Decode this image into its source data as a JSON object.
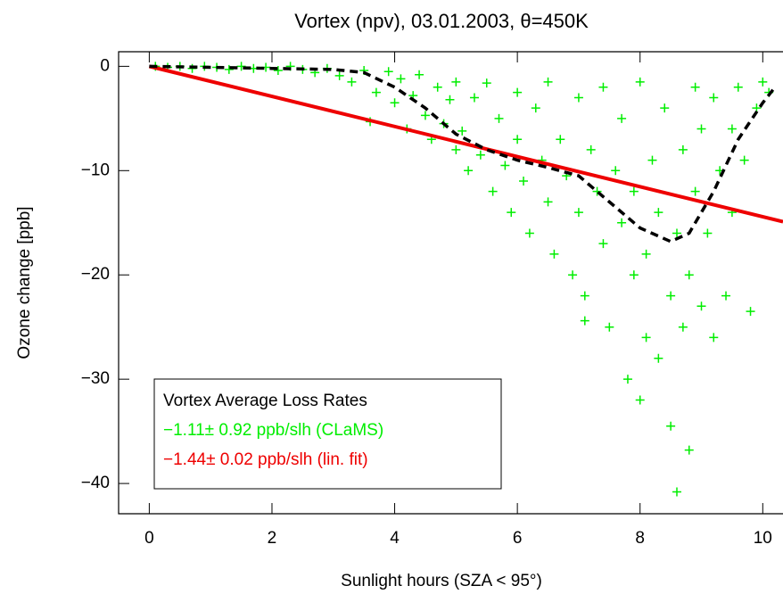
{
  "chart_data": {
    "type": "scatter",
    "title": "Vortex (npv), 03.01.2003, θ=450K",
    "xlabel": "Sunlight hours (SZA < 95°)",
    "ylabel": "Ozone change [ppb]",
    "legend_title": "Vortex Average Loss Rates",
    "legend": "lower left",
    "xlim": [
      -0.5,
      10.33
    ],
    "ylim": [
      -42.9,
      1.4
    ],
    "xticks": [
      0,
      2,
      4,
      6,
      8,
      10
    ],
    "yticks": [
      0,
      {
        "value": -10,
        "label": "−10"
      },
      {
        "value": -20,
        "label": "−20"
      },
      {
        "value": -30,
        "label": "−30"
      },
      {
        "value": -40,
        "label": "−40"
      }
    ],
    "series": [
      {
        "name": "−1.11± 0.92 ppb/slh (CLaMS)",
        "type": "scatter",
        "color": "#00ee00",
        "x": [
          0.1,
          0.3,
          0.5,
          0.7,
          0.9,
          1.1,
          1.3,
          1.5,
          1.7,
          1.9,
          2.1,
          2.3,
          2.5,
          2.7,
          2.9,
          3.1,
          3.3,
          3.5,
          3.6,
          3.7,
          3.9,
          4.0,
          4.1,
          4.2,
          4.3,
          4.4,
          4.5,
          4.6,
          4.7,
          4.8,
          4.9,
          5.0,
          5.0,
          5.1,
          5.2,
          5.3,
          5.4,
          5.5,
          5.6,
          5.7,
          5.8,
          5.9,
          6.0,
          6.0,
          6.1,
          6.2,
          6.3,
          6.4,
          6.5,
          6.5,
          6.6,
          6.7,
          6.8,
          6.9,
          7.0,
          7.0,
          7.1,
          7.1,
          7.2,
          7.3,
          7.4,
          7.4,
          7.5,
          7.6,
          7.7,
          7.7,
          7.8,
          7.9,
          7.9,
          8.0,
          8.0,
          8.1,
          8.1,
          8.2,
          8.3,
          8.3,
          8.4,
          8.5,
          8.5,
          8.6,
          8.6,
          8.7,
          8.7,
          8.8,
          8.8,
          8.9,
          8.9,
          9.0,
          9.0,
          9.1,
          9.2,
          9.2,
          9.3,
          9.4,
          9.5,
          9.5,
          9.6,
          9.7,
          9.8,
          9.9,
          10.0,
          10.1
        ],
        "values": [
          0,
          -0.1,
          0,
          -0.2,
          0,
          -0.1,
          -0.3,
          0,
          -0.2,
          -0.1,
          -0.4,
          0,
          -0.3,
          -0.6,
          -0.2,
          -0.9,
          -1.5,
          -0.4,
          -5.3,
          -2.5,
          -0.5,
          -3.5,
          -1.2,
          -6,
          -2.8,
          -0.8,
          -4.7,
          -7,
          -2,
          -5.5,
          -3.2,
          -8,
          -1.5,
          -6.2,
          -10,
          -3,
          -8.5,
          -1.6,
          -12,
          -5,
          -9.5,
          -14,
          -7,
          -2.5,
          -11,
          -16,
          -4,
          -9,
          -13,
          -1.5,
          -18,
          -7,
          -10.5,
          -20,
          -3,
          -14,
          -22,
          -24.4,
          -8,
          -12,
          -17,
          -2,
          -25,
          -10,
          -15,
          -5,
          -30,
          -20,
          -12,
          -32,
          -1.5,
          -26,
          -18,
          -9,
          -28,
          -14,
          -4,
          -34.5,
          -22,
          -40.8,
          -16,
          -25,
          -8,
          -36.8,
          -20,
          -2,
          -12,
          -23,
          -6,
          -16,
          -26,
          -3,
          -10,
          -22,
          -6,
          -14,
          -2,
          -9,
          -23.5,
          -4,
          -1.5,
          -2.5
        ]
      },
      {
        "name": "−1.44± 0.02 ppb/slh (lin. fit)",
        "type": "line",
        "color": "#ee0000",
        "x": [
          0,
          10.33
        ],
        "values": [
          0,
          -14.9
        ]
      },
      {
        "type": "line",
        "color": "#000000",
        "dashed": true,
        "x": [
          0,
          1,
          2,
          3,
          3.5,
          4,
          4.5,
          5,
          5.5,
          6,
          6.5,
          7,
          7.5,
          8,
          8.5,
          8.8,
          9.2,
          9.6,
          10,
          10.2
        ],
        "values": [
          0,
          -0.1,
          -0.2,
          -0.3,
          -0.6,
          -2,
          -4,
          -6.5,
          -8,
          -9,
          -9.7,
          -10.5,
          -13,
          -15.5,
          -16.8,
          -16,
          -12,
          -7,
          -3.5,
          -2
        ]
      }
    ]
  }
}
